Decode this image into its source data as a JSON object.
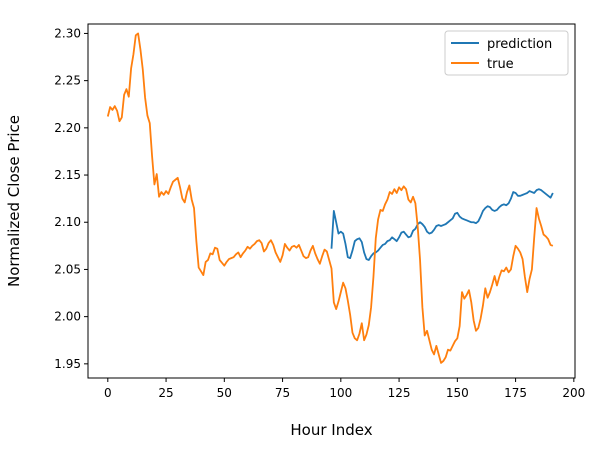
{
  "chart_data": {
    "type": "line",
    "title": "",
    "xlabel": "Hour Index",
    "ylabel": "Normalized Close Price",
    "xlim": [
      -8.5,
      200.5
    ],
    "ylim": [
      1.935,
      2.31
    ],
    "x_ticks": [
      0,
      25,
      50,
      75,
      100,
      125,
      150,
      175,
      200
    ],
    "y_ticks": [
      1.95,
      2.0,
      2.05,
      2.1,
      2.15,
      2.2,
      2.25,
      2.3
    ],
    "x_tick_labels": [
      "0",
      "25",
      "50",
      "75",
      "100",
      "125",
      "150",
      "175",
      "200"
    ],
    "y_tick_labels": [
      "1.95",
      "2.00",
      "2.05",
      "2.10",
      "2.15",
      "2.20",
      "2.25",
      "2.30"
    ],
    "grid": false,
    "legend_position": "top-right",
    "series": [
      {
        "name": "prediction",
        "color": "#1f77b4",
        "points": [
          [
            96,
            2.072
          ],
          [
            97,
            2.112
          ],
          [
            98,
            2.1
          ],
          [
            99,
            2.088
          ],
          [
            100,
            2.09
          ],
          [
            101,
            2.088
          ],
          [
            102,
            2.077
          ],
          [
            103,
            2.063
          ],
          [
            104,
            2.062
          ],
          [
            105,
            2.07
          ],
          [
            106,
            2.08
          ],
          [
            107,
            2.082
          ],
          [
            108,
            2.083
          ],
          [
            109,
            2.079
          ],
          [
            110,
            2.068
          ],
          [
            111,
            2.061
          ],
          [
            112,
            2.06
          ],
          [
            113,
            2.064
          ],
          [
            114,
            2.067
          ],
          [
            115,
            2.068
          ],
          [
            116,
            2.07
          ],
          [
            117,
            2.073
          ],
          [
            118,
            2.076
          ],
          [
            119,
            2.077
          ],
          [
            120,
            2.08
          ],
          [
            121,
            2.081
          ],
          [
            122,
            2.084
          ],
          [
            123,
            2.082
          ],
          [
            124,
            2.08
          ],
          [
            125,
            2.084
          ],
          [
            126,
            2.089
          ],
          [
            127,
            2.09
          ],
          [
            128,
            2.087
          ],
          [
            129,
            2.084
          ],
          [
            130,
            2.085
          ],
          [
            131,
            2.091
          ],
          [
            132,
            2.093
          ],
          [
            133,
            2.098
          ],
          [
            134,
            2.1
          ],
          [
            135,
            2.098
          ],
          [
            136,
            2.095
          ],
          [
            137,
            2.09
          ],
          [
            138,
            2.088
          ],
          [
            139,
            2.089
          ],
          [
            140,
            2.092
          ],
          [
            141,
            2.096
          ],
          [
            142,
            2.097
          ],
          [
            143,
            2.096
          ],
          [
            144,
            2.097
          ],
          [
            145,
            2.098
          ],
          [
            146,
            2.1
          ],
          [
            147,
            2.102
          ],
          [
            148,
            2.104
          ],
          [
            149,
            2.109
          ],
          [
            150,
            2.11
          ],
          [
            151,
            2.106
          ],
          [
            152,
            2.104
          ],
          [
            153,
            2.103
          ],
          [
            154,
            2.102
          ],
          [
            155,
            2.101
          ],
          [
            156,
            2.1
          ],
          [
            157,
            2.1
          ],
          [
            158,
            2.099
          ],
          [
            159,
            2.101
          ],
          [
            160,
            2.106
          ],
          [
            161,
            2.112
          ],
          [
            162,
            2.115
          ],
          [
            163,
            2.117
          ],
          [
            164,
            2.116
          ],
          [
            165,
            2.113
          ],
          [
            166,
            2.112
          ],
          [
            167,
            2.113
          ],
          [
            168,
            2.116
          ],
          [
            169,
            2.118
          ],
          [
            170,
            2.119
          ],
          [
            171,
            2.118
          ],
          [
            172,
            2.12
          ],
          [
            173,
            2.125
          ],
          [
            174,
            2.132
          ],
          [
            175,
            2.131
          ],
          [
            176,
            2.128
          ],
          [
            177,
            2.128
          ],
          [
            178,
            2.129
          ],
          [
            179,
            2.13
          ],
          [
            180,
            2.131
          ],
          [
            181,
            2.133
          ],
          [
            182,
            2.132
          ],
          [
            183,
            2.131
          ],
          [
            184,
            2.134
          ],
          [
            185,
            2.135
          ],
          [
            186,
            2.134
          ],
          [
            187,
            2.132
          ],
          [
            188,
            2.13
          ],
          [
            189,
            2.128
          ],
          [
            190,
            2.126
          ],
          [
            191,
            2.131
          ]
        ]
      },
      {
        "name": "true",
        "color": "#ff7f0e",
        "points": [
          [
            0,
            2.212
          ],
          [
            1,
            2.222
          ],
          [
            2,
            2.219
          ],
          [
            3,
            2.223
          ],
          [
            4,
            2.218
          ],
          [
            5,
            2.207
          ],
          [
            6,
            2.211
          ],
          [
            7,
            2.235
          ],
          [
            8,
            2.241
          ],
          [
            9,
            2.233
          ],
          [
            10,
            2.263
          ],
          [
            11,
            2.278
          ],
          [
            12,
            2.298
          ],
          [
            13,
            2.3
          ],
          [
            14,
            2.283
          ],
          [
            15,
            2.262
          ],
          [
            16,
            2.232
          ],
          [
            17,
            2.213
          ],
          [
            18,
            2.205
          ],
          [
            19,
            2.17
          ],
          [
            20,
            2.14
          ],
          [
            21,
            2.151
          ],
          [
            22,
            2.127
          ],
          [
            23,
            2.132
          ],
          [
            24,
            2.129
          ],
          [
            25,
            2.133
          ],
          [
            26,
            2.13
          ],
          [
            27,
            2.137
          ],
          [
            28,
            2.143
          ],
          [
            29,
            2.145
          ],
          [
            30,
            2.147
          ],
          [
            31,
            2.137
          ],
          [
            32,
            2.125
          ],
          [
            33,
            2.121
          ],
          [
            34,
            2.132
          ],
          [
            35,
            2.139
          ],
          [
            36,
            2.124
          ],
          [
            37,
            2.115
          ],
          [
            38,
            2.08
          ],
          [
            39,
            2.052
          ],
          [
            40,
            2.048
          ],
          [
            41,
            2.044
          ],
          [
            42,
            2.058
          ],
          [
            43,
            2.06
          ],
          [
            44,
            2.067
          ],
          [
            45,
            2.066
          ],
          [
            46,
            2.073
          ],
          [
            47,
            2.072
          ],
          [
            48,
            2.06
          ],
          [
            49,
            2.057
          ],
          [
            50,
            2.054
          ],
          [
            51,
            2.058
          ],
          [
            52,
            2.061
          ],
          [
            53,
            2.062
          ],
          [
            54,
            2.063
          ],
          [
            55,
            2.066
          ],
          [
            56,
            2.068
          ],
          [
            57,
            2.063
          ],
          [
            58,
            2.067
          ],
          [
            59,
            2.07
          ],
          [
            60,
            2.074
          ],
          [
            61,
            2.072
          ],
          [
            62,
            2.075
          ],
          [
            63,
            2.077
          ],
          [
            64,
            2.08
          ],
          [
            65,
            2.081
          ],
          [
            66,
            2.078
          ],
          [
            67,
            2.069
          ],
          [
            68,
            2.072
          ],
          [
            69,
            2.078
          ],
          [
            70,
            2.081
          ],
          [
            71,
            2.076
          ],
          [
            72,
            2.068
          ],
          [
            73,
            2.063
          ],
          [
            74,
            2.058
          ],
          [
            75,
            2.065
          ],
          [
            76,
            2.077
          ],
          [
            77,
            2.073
          ],
          [
            78,
            2.07
          ],
          [
            79,
            2.074
          ],
          [
            80,
            2.075
          ],
          [
            81,
            2.073
          ],
          [
            82,
            2.076
          ],
          [
            83,
            2.07
          ],
          [
            84,
            2.064
          ],
          [
            85,
            2.062
          ],
          [
            86,
            2.063
          ],
          [
            87,
            2.07
          ],
          [
            88,
            2.075
          ],
          [
            89,
            2.067
          ],
          [
            90,
            2.061
          ],
          [
            91,
            2.056
          ],
          [
            92,
            2.064
          ],
          [
            93,
            2.071
          ],
          [
            94,
            2.069
          ],
          [
            95,
            2.06
          ],
          [
            96,
            2.051
          ],
          [
            97,
            2.015
          ],
          [
            98,
            2.008
          ],
          [
            99,
            2.016
          ],
          [
            100,
            2.026
          ],
          [
            101,
            2.036
          ],
          [
            102,
            2.03
          ],
          [
            103,
            2.017
          ],
          [
            104,
            2.002
          ],
          [
            105,
            1.983
          ],
          [
            106,
            1.977
          ],
          [
            107,
            1.975
          ],
          [
            108,
            1.982
          ],
          [
            109,
            1.993
          ],
          [
            110,
            1.975
          ],
          [
            111,
            1.981
          ],
          [
            112,
            1.991
          ],
          [
            113,
            2.01
          ],
          [
            114,
            2.042
          ],
          [
            115,
            2.083
          ],
          [
            116,
            2.103
          ],
          [
            117,
            2.113
          ],
          [
            118,
            2.112
          ],
          [
            119,
            2.119
          ],
          [
            120,
            2.124
          ],
          [
            121,
            2.132
          ],
          [
            122,
            2.13
          ],
          [
            123,
            2.135
          ],
          [
            124,
            2.131
          ],
          [
            125,
            2.137
          ],
          [
            126,
            2.134
          ],
          [
            127,
            2.138
          ],
          [
            128,
            2.135
          ],
          [
            129,
            2.124
          ],
          [
            130,
            2.121
          ],
          [
            131,
            2.127
          ],
          [
            132,
            2.12
          ],
          [
            133,
            2.095
          ],
          [
            134,
            2.06
          ],
          [
            135,
            2.01
          ],
          [
            136,
            1.98
          ],
          [
            137,
            1.985
          ],
          [
            138,
            1.975
          ],
          [
            139,
            1.965
          ],
          [
            140,
            1.96
          ],
          [
            141,
            1.969
          ],
          [
            142,
            1.96
          ],
          [
            143,
            1.951
          ],
          [
            144,
            1.953
          ],
          [
            145,
            1.957
          ],
          [
            146,
            1.965
          ],
          [
            147,
            1.964
          ],
          [
            148,
            1.969
          ],
          [
            149,
            1.974
          ],
          [
            150,
            1.977
          ],
          [
            151,
            1.99
          ],
          [
            152,
            2.026
          ],
          [
            153,
            2.019
          ],
          [
            154,
            2.023
          ],
          [
            155,
            2.028
          ],
          [
            156,
            2.015
          ],
          [
            157,
            1.996
          ],
          [
            158,
            1.985
          ],
          [
            159,
            1.988
          ],
          [
            160,
            1.998
          ],
          [
            161,
            2.012
          ],
          [
            162,
            2.03
          ],
          [
            163,
            2.02
          ],
          [
            164,
            2.026
          ],
          [
            165,
            2.034
          ],
          [
            166,
            2.043
          ],
          [
            167,
            2.033
          ],
          [
            168,
            2.042
          ],
          [
            169,
            2.049
          ],
          [
            170,
            2.048
          ],
          [
            171,
            2.052
          ],
          [
            172,
            2.047
          ],
          [
            173,
            2.05
          ],
          [
            174,
            2.064
          ],
          [
            175,
            2.075
          ],
          [
            176,
            2.072
          ],
          [
            177,
            2.068
          ],
          [
            178,
            2.061
          ],
          [
            179,
            2.042
          ],
          [
            180,
            2.026
          ],
          [
            181,
            2.04
          ],
          [
            182,
            2.05
          ],
          [
            183,
            2.084
          ],
          [
            184,
            2.115
          ],
          [
            185,
            2.104
          ],
          [
            186,
            2.096
          ],
          [
            187,
            2.087
          ],
          [
            188,
            2.085
          ],
          [
            189,
            2.082
          ],
          [
            190,
            2.076
          ],
          [
            191,
            2.075
          ]
        ]
      }
    ]
  }
}
